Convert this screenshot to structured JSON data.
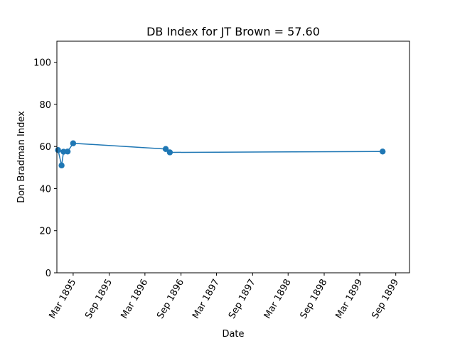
{
  "chart_data": {
    "type": "line",
    "title": "DB Index for JT Brown = 57.60",
    "xlabel": "Date",
    "ylabel": "Don Bradman Index",
    "ylim": [
      0,
      110
    ],
    "xlim": [
      "1894-12-08",
      "1899-11-10"
    ],
    "grid": false,
    "legend": "none",
    "y_ticks": [
      0,
      20,
      40,
      60,
      80,
      100
    ],
    "x_ticks": [
      {
        "date": "1895-03-01",
        "label": "Mar 1895"
      },
      {
        "date": "1895-09-01",
        "label": "Sep 1895"
      },
      {
        "date": "1896-03-01",
        "label": "Mar 1896"
      },
      {
        "date": "1896-09-01",
        "label": "Sep 1896"
      },
      {
        "date": "1897-03-01",
        "label": "Mar 1897"
      },
      {
        "date": "1897-09-01",
        "label": "Sep 1897"
      },
      {
        "date": "1898-03-01",
        "label": "Mar 1898"
      },
      {
        "date": "1898-09-01",
        "label": "Sep 1898"
      },
      {
        "date": "1899-03-01",
        "label": "Mar 1899"
      },
      {
        "date": "1899-09-01",
        "label": "Sep 1899"
      }
    ],
    "series": [
      {
        "color": "#1f77b4",
        "points": [
          {
            "x": "1894-12-14",
            "y": 58.3
          },
          {
            "x": "1895-01-01",
            "y": 51.0
          },
          {
            "x": "1895-01-11",
            "y": 57.5
          },
          {
            "x": "1895-02-01",
            "y": 57.6
          },
          {
            "x": "1895-03-01",
            "y": 61.5
          },
          {
            "x": "1896-06-15",
            "y": 58.8
          },
          {
            "x": "1896-07-06",
            "y": 57.2
          },
          {
            "x": "1899-06-26",
            "y": 57.6
          }
        ]
      }
    ]
  }
}
